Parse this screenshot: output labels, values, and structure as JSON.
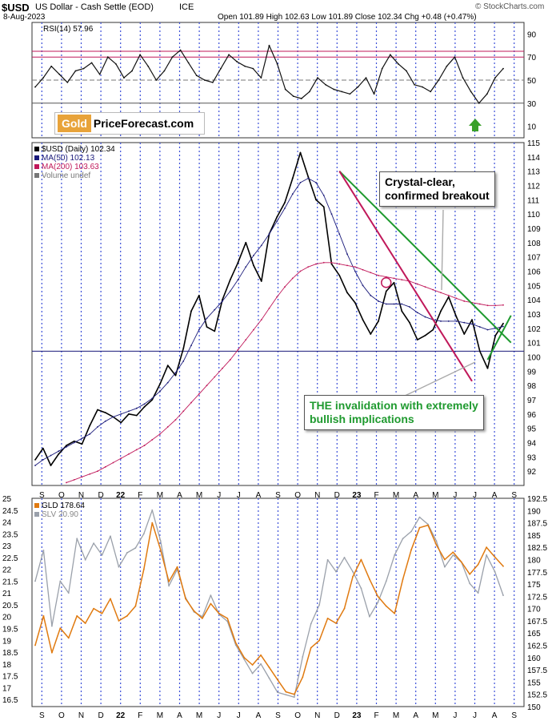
{
  "header": {
    "symbol": "$USD",
    "name": "US Dollar - Cash Settle (EOD)",
    "exchange": "ICE",
    "date": "8-Aug-2023",
    "ohlc": "Open 101.89  High 102.63  Low 101.89  Close 102.34  Chg +0.48 (+0.47%)",
    "credit": "© StockCharts.com"
  },
  "logo": {
    "part1": "Gold",
    "part2": "PriceForecast.com"
  },
  "colors": {
    "usd": "#000000",
    "ma50": "#1a1a7a",
    "ma200": "#c0185a",
    "gld": "#e07a10",
    "slv": "#9aa0aa",
    "green_line": "#1f9a2f",
    "pink_line": "#c0185a",
    "annotation_green": "#1f9a2f",
    "arrow": "#3aa02a"
  },
  "annotations": {
    "breakout_line1": "Crystal-clear,",
    "breakout_line2": "confirmed breakout",
    "invalidation_line1": "THE invalidation with extremely",
    "invalidation_line2": "bullish implications"
  },
  "x_axis": [
    "S",
    "O",
    "N",
    "D",
    "22",
    "F",
    "M",
    "A",
    "M",
    "J",
    "J",
    "A",
    "S",
    "O",
    "N",
    "D",
    "23",
    "F",
    "M",
    "A",
    "M",
    "J",
    "J",
    "A",
    "S"
  ],
  "chart_data": [
    {
      "type": "line",
      "title": "RSI(14) 57.96",
      "ylim": [
        0,
        100
      ],
      "yticks": [
        10,
        30,
        50,
        70,
        90
      ],
      "ref_lines": [
        30,
        70,
        75
      ],
      "series": [
        {
          "name": "RSI(14) 57.96",
          "values": [
            44,
            52,
            62,
            55,
            48,
            58,
            60,
            65,
            55,
            70,
            64,
            52,
            58,
            72,
            62,
            50,
            58,
            70,
            76,
            65,
            54,
            50,
            48,
            60,
            72,
            66,
            62,
            60,
            52,
            80,
            64,
            42,
            36,
            34,
            40,
            52,
            46,
            42,
            40,
            38,
            44,
            52,
            38,
            60,
            72,
            64,
            58,
            46,
            44,
            40,
            50,
            62,
            70,
            52,
            40,
            30,
            38,
            52,
            60
          ]
        }
      ]
    },
    {
      "type": "line",
      "title": "$USD (Daily) 102.34",
      "ylim": [
        91,
        115
      ],
      "yticks": [
        92,
        93,
        94,
        95,
        96,
        97,
        98,
        99,
        100,
        101,
        102,
        103,
        104,
        105,
        106,
        107,
        108,
        109,
        110,
        111,
        112,
        113,
        114,
        115
      ],
      "grid": true,
      "series": [
        {
          "name": "$USD (Daily) 102.34",
          "values": [
            92.8,
            93.6,
            92.4,
            93.2,
            93.8,
            94.1,
            93.9,
            95.2,
            96.3,
            96.1,
            95.8,
            95.4,
            96.0,
            95.9,
            96.5,
            97.0,
            98.1,
            99.4,
            98.7,
            100.6,
            103.2,
            104.3,
            102.1,
            101.8,
            104.0,
            105.4,
            106.6,
            108.0,
            106.4,
            105.3,
            108.6,
            109.8,
            110.8,
            112.5,
            114.3,
            112.6,
            111.0,
            110.5,
            106.5,
            105.7,
            104.5,
            103.8,
            102.6,
            101.6,
            102.5,
            104.6,
            105.2,
            103.2,
            102.4,
            101.2,
            101.5,
            101.9,
            103.2,
            104.2,
            102.8,
            101.6,
            102.6,
            100.4,
            99.2,
            101.5,
            102.34
          ]
        },
        {
          "name": "MA(50) 102.13",
          "values": [
            92.4,
            92.8,
            93.1,
            93.4,
            93.7,
            94.0,
            94.3,
            94.6,
            95.1,
            95.5,
            95.8,
            96.0,
            96.2,
            96.4,
            96.7,
            97.1,
            97.6,
            98.2,
            98.9,
            99.7,
            100.8,
            101.9,
            102.7,
            103.3,
            103.9,
            104.6,
            105.4,
            106.3,
            107.1,
            107.8,
            108.6,
            109.5,
            110.4,
            111.4,
            112.2,
            112.5,
            112.2,
            111.3,
            110.0,
            108.6,
            107.2,
            106.0,
            105.0,
            104.3,
            103.9,
            103.7,
            103.7,
            103.7,
            103.5,
            103.1,
            102.8,
            102.6,
            102.5,
            102.5,
            102.5,
            102.4,
            102.3,
            102.1,
            101.9,
            102.0,
            102.13
          ]
        },
        {
          "name": "MA(200) 103.63",
          "values": [
            null,
            null,
            null,
            null,
            91.2,
            91.4,
            91.6,
            91.8,
            92.0,
            92.3,
            92.6,
            92.9,
            93.2,
            93.5,
            93.8,
            94.2,
            94.6,
            95.1,
            95.6,
            96.2,
            96.8,
            97.4,
            98.0,
            98.6,
            99.2,
            99.8,
            100.5,
            101.2,
            101.9,
            102.6,
            103.4,
            104.2,
            104.9,
            105.5,
            106.0,
            106.3,
            106.5,
            106.6,
            106.6,
            106.5,
            106.4,
            106.3,
            106.1,
            105.9,
            105.7,
            105.6,
            105.5,
            105.4,
            105.3,
            105.1,
            104.9,
            104.7,
            104.5,
            104.3,
            104.1,
            103.9,
            103.8,
            103.7,
            103.6,
            103.6,
            103.63
          ]
        }
      ],
      "ref_lines": [
        100.4
      ],
      "legend": [
        "$USD (Daily) 102.34",
        "MA(50) 102.13",
        "MA(200) 103.63",
        "Volume undef"
      ],
      "trendlines": [
        {
          "name": "green",
          "from": [
            39,
            113.0
          ],
          "to": [
            61,
            101.0
          ]
        },
        {
          "name": "pink",
          "from": [
            39,
            113.0
          ],
          "to": [
            56,
            98.3
          ]
        },
        {
          "name": "green-short",
          "from": [
            58,
            99.8
          ],
          "to": [
            61,
            102.9
          ]
        }
      ]
    },
    {
      "type": "line",
      "title": "GLD 178.64",
      "ylim_left": [
        16.2,
        25.0
      ],
      "ylim_right": [
        150.0,
        192.5
      ],
      "yticks_left": [
        16.5,
        17.0,
        17.5,
        18.0,
        18.5,
        19.0,
        19.5,
        20.0,
        20.5,
        21.0,
        21.5,
        22.0,
        22.5,
        23.0,
        23.5,
        24.0,
        24.5,
        25.0
      ],
      "yticks_right": [
        150.0,
        152.5,
        155.0,
        157.5,
        160.0,
        162.5,
        165.0,
        167.5,
        170.0,
        172.5,
        175.0,
        177.5,
        180.0,
        182.5,
        185.0,
        187.5,
        190.0,
        192.5
      ],
      "legend": [
        "GLD 178.64",
        "SLV 20.90"
      ],
      "series": [
        {
          "name": "GLD 178.64",
          "axis": "right",
          "values": [
            162.5,
            168.5,
            161.0,
            166.0,
            164.0,
            168.5,
            167.0,
            170.0,
            169.0,
            172.0,
            167.5,
            168.5,
            170.5,
            178.0,
            187.5,
            182.0,
            175.5,
            178.5,
            172.0,
            169.5,
            168.0,
            171.0,
            169.0,
            168.0,
            163.0,
            160.0,
            158.5,
            160.5,
            158.0,
            155.5,
            153.0,
            152.5,
            156.0,
            162.0,
            163.5,
            168.0,
            167.0,
            170.0,
            176.5,
            180.0,
            176.0,
            172.5,
            170.5,
            169.0,
            176.0,
            182.0,
            186.5,
            187.0,
            183.0,
            180.0,
            181.5,
            179.5,
            177.0,
            179.0,
            182.5,
            180.5,
            178.64
          ]
        },
        {
          "name": "SLV 20.90",
          "axis": "left",
          "values": [
            21.5,
            22.8,
            19.6,
            21.5,
            21.0,
            23.3,
            22.4,
            23.1,
            22.6,
            23.4,
            22.1,
            22.7,
            22.9,
            23.5,
            24.5,
            23.2,
            21.3,
            22.0,
            20.8,
            20.2,
            20.0,
            20.9,
            20.1,
            19.8,
            18.8,
            18.2,
            17.6,
            18.0,
            17.4,
            16.8,
            16.7,
            16.6,
            18.3,
            19.7,
            20.5,
            22.4,
            21.9,
            22.5,
            21.9,
            21.2,
            20.0,
            20.6,
            21.5,
            22.6,
            23.3,
            23.6,
            24.2,
            23.9,
            23.2,
            22.1,
            22.6,
            22.3,
            21.4,
            21.0,
            22.6,
            21.9,
            20.9
          ]
        }
      ]
    }
  ]
}
